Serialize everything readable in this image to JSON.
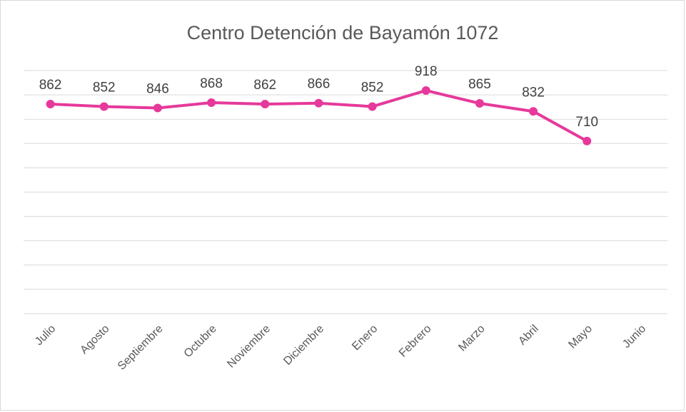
{
  "chart_data": {
    "type": "line",
    "title": "Centro Detención de Bayamón 1072",
    "categories": [
      "Julio",
      "Agosto",
      "Septiembre",
      "Octubre",
      "Noviembre",
      "Diciembre",
      "Enero",
      "Febrero",
      "Marzo",
      "Abril",
      "Mayo",
      "Junio"
    ],
    "series": [
      {
        "name": "Centro Detención de Bayamón 1072",
        "color": "#e6399b",
        "values": [
          862,
          852,
          846,
          868,
          862,
          866,
          852,
          918,
          865,
          832,
          710,
          null
        ]
      }
    ],
    "ylim": [
      0,
      1000
    ],
    "yticks": [
      0,
      100,
      200,
      300,
      400,
      500,
      600,
      700,
      800,
      900,
      1000
    ],
    "grid": true
  }
}
